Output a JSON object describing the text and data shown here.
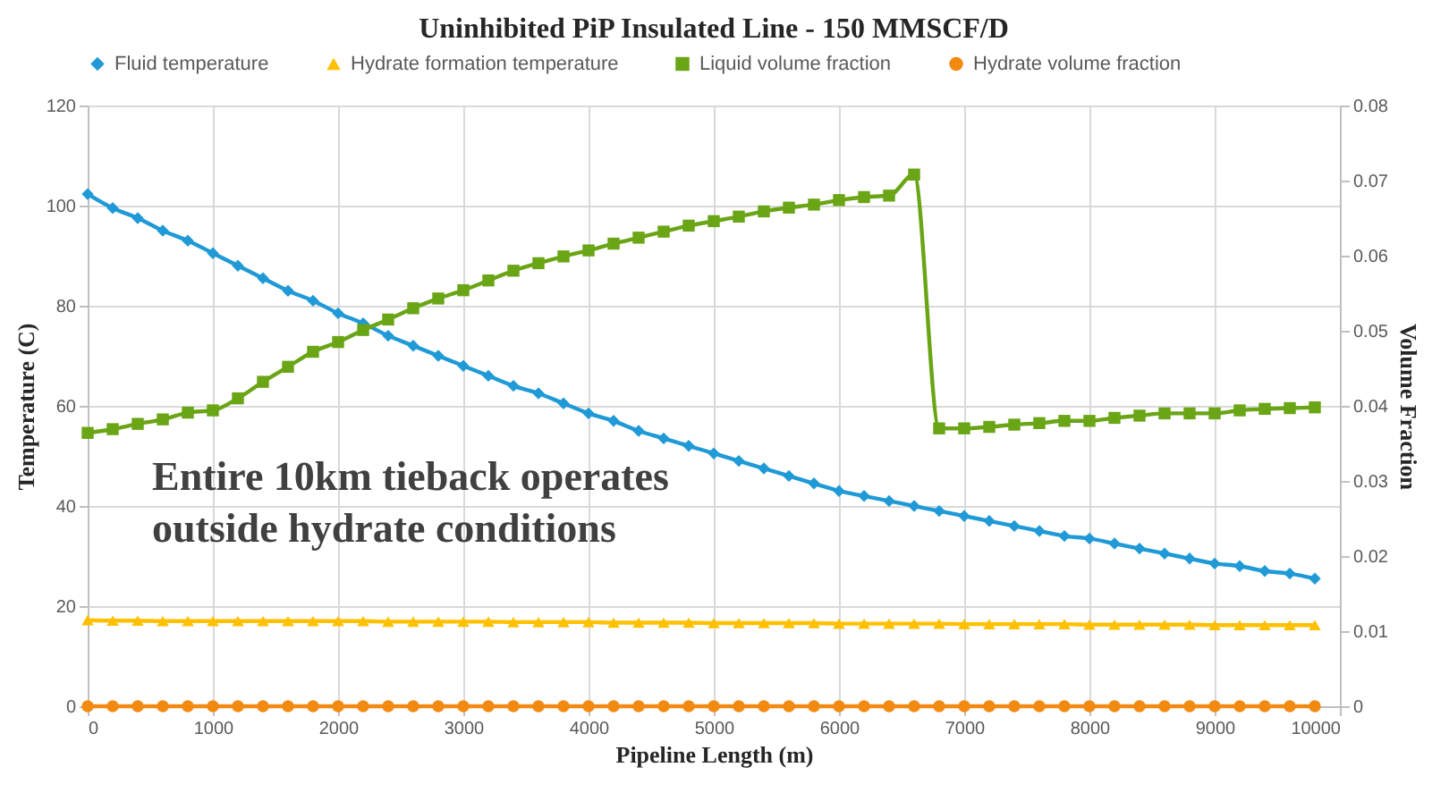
{
  "chart_data": {
    "type": "line",
    "title": "Uninhibited PiP Insulated Line - 150 MMSCF/D",
    "xlabel": "Pipeline Length (m)",
    "ylabel": "Temperature (C)",
    "y2label": "Volume Fraction",
    "x": [
      0,
      200,
      400,
      600,
      800,
      1000,
      1200,
      1400,
      1600,
      1800,
      2000,
      2200,
      2400,
      2600,
      2800,
      3000,
      3200,
      3400,
      3600,
      3800,
      4000,
      4200,
      4400,
      4600,
      4800,
      5000,
      5200,
      5400,
      5600,
      5800,
      6000,
      6200,
      6400,
      6600,
      6800,
      7000,
      7200,
      7400,
      7600,
      7800,
      8000,
      8200,
      8400,
      8600,
      8800,
      9000,
      9200,
      9400,
      9600,
      9800
    ],
    "series": [
      {
        "name": "Fluid temperature",
        "color": "#1f9ad6",
        "marker": "diamond",
        "values": [
          102.3,
          99.5,
          97.5,
          95,
          93,
          90.5,
          88,
          85.5,
          83,
          81,
          78.5,
          76.5,
          74,
          72,
          70,
          68,
          66,
          64,
          62.5,
          60.5,
          58.5,
          57,
          55,
          53.5,
          52,
          50.5,
          49,
          47.5,
          46,
          44.5,
          43,
          42,
          41,
          40,
          39,
          38,
          37,
          36,
          35,
          34,
          33.5,
          32.5,
          31.5,
          30.5,
          29.5,
          28.5,
          28,
          27,
          26.5,
          25.5
        ]
      },
      {
        "name": "Hydrate formation temperature",
        "color": "#ffc000",
        "marker": "triangle",
        "values": [
          17.2,
          17.1,
          17.1,
          17,
          17,
          17,
          17,
          17,
          17,
          17,
          17,
          17,
          16.9,
          16.9,
          16.9,
          16.9,
          16.9,
          16.8,
          16.8,
          16.8,
          16.8,
          16.7,
          16.7,
          16.7,
          16.7,
          16.6,
          16.6,
          16.6,
          16.6,
          16.6,
          16.5,
          16.5,
          16.5,
          16.5,
          16.5,
          16.4,
          16.4,
          16.4,
          16.4,
          16.4,
          16.3,
          16.3,
          16.3,
          16.3,
          16.3,
          16.2,
          16.2,
          16.2,
          16.2,
          16.2
        ]
      },
      {
        "name": "Liquid volume fraction",
        "color": "#6aa516",
        "marker": "square",
        "axis": "y2",
        "values": [
          0.0364,
          0.0369,
          0.0376,
          0.0382,
          0.0391,
          0.0394,
          0.041,
          0.0432,
          0.0452,
          0.0472,
          0.0485,
          0.0501,
          0.0515,
          0.053,
          0.0543,
          0.0554,
          0.0567,
          0.058,
          0.059,
          0.0599,
          0.0607,
          0.0616,
          0.0624,
          0.0632,
          0.064,
          0.0646,
          0.0652,
          0.0659,
          0.0664,
          0.0668,
          0.0674,
          0.0678,
          0.068,
          0.0708,
          0.037,
          0.037,
          0.0372,
          0.0375,
          0.0377,
          0.038,
          0.038,
          0.0384,
          0.0387,
          0.039,
          0.039,
          0.039,
          0.0394,
          0.0396,
          0.0397,
          0.0398
        ]
      },
      {
        "name": "Hydrate volume fraction",
        "color": "#f28a12",
        "marker": "circle",
        "axis": "y2",
        "values": [
          0,
          0,
          0,
          0,
          0,
          0,
          0,
          0,
          0,
          0,
          0,
          0,
          0,
          0,
          0,
          0,
          0,
          0,
          0,
          0,
          0,
          0,
          0,
          0,
          0,
          0,
          0,
          0,
          0,
          0,
          0,
          0,
          0,
          0,
          0,
          0,
          0,
          0,
          0,
          0,
          0,
          0,
          0,
          0,
          0,
          0,
          0,
          0,
          0,
          0
        ]
      }
    ],
    "xlim": [
      0,
      10000
    ],
    "xticks": [
      0,
      1000,
      2000,
      3000,
      4000,
      5000,
      6000,
      7000,
      8000,
      9000,
      10000
    ],
    "ylim": [
      0,
      120
    ],
    "yticks": [
      0,
      20,
      40,
      60,
      80,
      100,
      120
    ],
    "y2lim": [
      0,
      0.08
    ],
    "y2ticks": [
      0,
      0.01,
      0.02,
      0.03,
      0.04,
      0.05,
      0.06,
      0.07,
      0.08
    ],
    "annotations": [
      "Entire 10km tieback operates\noutside hydrate conditions"
    ],
    "grid": true,
    "legend": "top",
    "line_style": "solid"
  }
}
